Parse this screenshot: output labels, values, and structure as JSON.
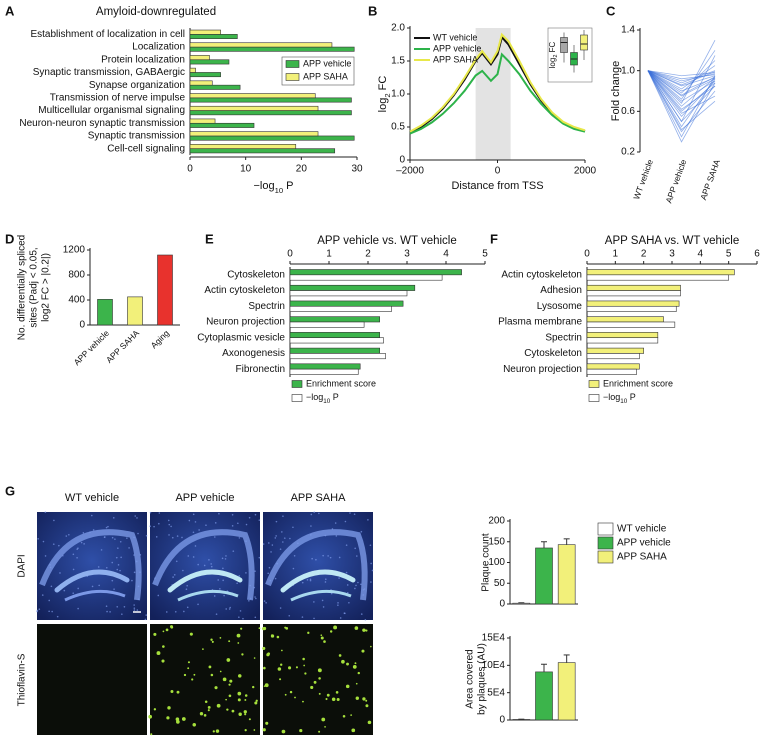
{
  "panel_labels": [
    "A",
    "B",
    "C",
    "D",
    "E",
    "F",
    "G"
  ],
  "figure_g": {
    "columns": [
      "WT vehicle",
      "APP vehicle",
      "APP SAHA"
    ],
    "rows": [
      "DAPI",
      "Thioflavin-S"
    ]
  },
  "chart_data": [
    {
      "type": "barh",
      "title": "Amyloid-downregulated",
      "categories": [
        "Establishment of localization in cell",
        "Localization",
        "Protein localization",
        "Synaptic transmission, GABAergic",
        "Synapse organization",
        "Transmission of nerve impulse",
        "Multicellular organismal signaling",
        "Neuron-neuron synaptic transmission",
        "Synaptic transmission",
        "Cell-cell signaling"
      ],
      "series": [
        {
          "name": "APP vehicle",
          "color": "#3cb44b",
          "values": [
            8.5,
            29.5,
            7,
            5.5,
            9,
            29,
            29,
            11.5,
            29.5,
            26
          ]
        },
        {
          "name": "APP SAHA",
          "color": "#f2f07a",
          "values": [
            5.5,
            25.5,
            3.5,
            1,
            4,
            22.5,
            23,
            4.5,
            23,
            19
          ]
        }
      ],
      "xlim": [
        0,
        30
      ],
      "xticks": [
        0,
        10,
        20,
        30
      ],
      "x_label": [
        "−log",
        "10",
        " P"
      ],
      "legend": "center right"
    },
    {
      "type": "line",
      "x_label": "Distance from TSS",
      "y_label": [
        "log",
        "2",
        " FC"
      ],
      "x": [
        -2000,
        -1750,
        -1500,
        -1250,
        -1000,
        -750,
        -500,
        -350,
        -150,
        0,
        100,
        250,
        500,
        750,
        1000,
        1250,
        1500,
        1750,
        2000
      ],
      "series": [
        {
          "name": "WT vehicle",
          "color": "#111111",
          "values": [
            0.42,
            0.5,
            0.62,
            0.78,
            0.98,
            1.22,
            1.5,
            1.62,
            1.45,
            1.6,
            1.86,
            1.75,
            1.45,
            1.15,
            0.9,
            0.7,
            0.56,
            0.48,
            0.44
          ]
        },
        {
          "name": "APP vehicle",
          "color": "#2db34a",
          "values": [
            0.4,
            0.47,
            0.57,
            0.7,
            0.86,
            1.05,
            1.28,
            1.35,
            1.2,
            1.3,
            1.6,
            1.5,
            1.3,
            1.05,
            0.85,
            0.68,
            0.55,
            0.47,
            0.43
          ]
        },
        {
          "name": "APP SAHA",
          "color": "#e8e84a",
          "values": [
            0.43,
            0.52,
            0.64,
            0.8,
            1.0,
            1.25,
            1.52,
            1.65,
            1.48,
            1.65,
            1.9,
            1.8,
            1.5,
            1.18,
            0.92,
            0.72,
            0.58,
            0.5,
            0.45
          ]
        }
      ],
      "shade": [
        -500,
        300
      ],
      "xlim": [
        -2000,
        2000
      ],
      "xticks": [
        {
          "value": -2000,
          "label": "–2000"
        },
        0,
        2000
      ],
      "ylim": [
        0,
        2
      ],
      "yticks": [
        0,
        0.5,
        {
          "value": 1,
          "label": "1.0"
        },
        1.5,
        {
          "value": 2,
          "label": "2.0"
        }
      ],
      "legend": "upper left",
      "inset": {
        "y_label": [
          "log",
          "2",
          " FC"
        ],
        "ylim": [
          0,
          1
        ],
        "boxes": [
          {
            "color": "#a8a8a8",
            "whiskers": [
              0.35,
              0.95
            ],
            "box": [
              0.55,
              0.85
            ],
            "median": 0.75
          },
          {
            "color": "#2db34a",
            "whiskers": [
              0.15,
              0.7
            ],
            "box": [
              0.3,
              0.55
            ],
            "median": 0.42
          },
          {
            "color": "#f2f07a",
            "whiskers": [
              0.4,
              1.0
            ],
            "box": [
              0.6,
              0.9
            ],
            "median": 0.72
          }
        ]
      }
    },
    {
      "type": "line",
      "y_label": "Fold change",
      "color": "#3a6fd8",
      "categories": [
        "WT vehicle",
        "APP vehicle",
        "APP SAHA"
      ],
      "series": [
        {
          "values": [
            1,
            0.95,
            0.98
          ]
        },
        {
          "values": [
            1,
            0.9,
            0.97
          ]
        },
        {
          "values": [
            1,
            0.85,
            0.95
          ]
        },
        {
          "values": [
            1,
            0.8,
            0.93
          ]
        },
        {
          "values": [
            1,
            0.75,
            0.92
          ]
        },
        {
          "values": [
            1,
            0.7,
            0.9
          ]
        },
        {
          "values": [
            1,
            0.65,
            0.93
          ]
        },
        {
          "values": [
            1,
            0.6,
            0.88
          ]
        },
        {
          "values": [
            1,
            0.55,
            0.9
          ]
        },
        {
          "values": [
            1,
            0.5,
            0.85
          ]
        },
        {
          "values": [
            1,
            0.45,
            0.92
          ]
        },
        {
          "values": [
            1,
            0.4,
            0.8
          ]
        },
        {
          "values": [
            1,
            0.35,
            0.95
          ]
        },
        {
          "values": [
            1,
            0.3,
            0.88
          ]
        },
        {
          "values": [
            1,
            0.82,
            1.05
          ]
        },
        {
          "values": [
            1,
            0.78,
            1.1
          ]
        },
        {
          "values": [
            1,
            0.72,
            1.2
          ]
        },
        {
          "values": [
            1,
            0.68,
            1.3
          ]
        },
        {
          "values": [
            1,
            0.88,
            1.0
          ]
        },
        {
          "values": [
            1,
            0.92,
            0.96
          ]
        },
        {
          "values": [
            1,
            0.62,
            0.85
          ]
        },
        {
          "values": [
            1,
            0.58,
            0.75
          ]
        },
        {
          "values": [
            1,
            0.5,
            1.15
          ]
        },
        {
          "values": [
            1,
            0.42,
            0.7
          ]
        },
        {
          "values": [
            1,
            0.86,
            0.99
          ]
        },
        {
          "values": [
            1,
            0.76,
            0.94
          ]
        }
      ],
      "ylim": [
        0.2,
        1.4
      ],
      "yticks": [
        0.2,
        0.6,
        {
          "value": 1,
          "label": "1.0"
        },
        1.4
      ]
    },
    {
      "type": "bar",
      "y_label_lines": [
        "No. differentially spliced",
        "sites (Padj < 0.05,",
        "log2 FC > |0.2|)"
      ],
      "categories": [
        "APP vehicle",
        "APP SAHA",
        "Aging"
      ],
      "values": [
        410,
        450,
        1120
      ],
      "colors": [
        "#3cb44b",
        "#f2f07a",
        "#e8322d"
      ],
      "ylim": [
        0,
        1200
      ],
      "yticks": [
        0,
        400,
        800,
        1200
      ]
    },
    {
      "type": "barh",
      "title": "APP vehicle vs. WT vehicle",
      "categories": [
        "Cytoskeleton",
        "Actin cytoskeleton",
        "Spectrin",
        "Neuron projection",
        "Cytoplasmic vesicle",
        "Axonogenesis",
        "Fibronectin"
      ],
      "series": [
        {
          "name": "Enrichment score",
          "color": "#3cb44b",
          "values": [
            4.4,
            3.2,
            2.9,
            2.3,
            2.3,
            2.3,
            1.8
          ]
        },
        {
          "name": [
            "−log",
            "10",
            " P"
          ],
          "color": "#ffffff",
          "values": [
            3.9,
            3.0,
            2.6,
            1.9,
            2.4,
            2.45,
            1.75
          ]
        }
      ],
      "xlim": [
        0,
        5
      ],
      "xticks": [
        0,
        1,
        2,
        3,
        4,
        5
      ],
      "legend": "lower left"
    },
    {
      "type": "barh",
      "title": "APP SAHA vs. WT vehicle",
      "categories": [
        "Actin cytoskeleton",
        "Adhesion",
        "Lysosome",
        "Plasma membrane",
        "Spectrin",
        "Cytoskeleton",
        "Neuron projection"
      ],
      "series": [
        {
          "name": "Enrichment score",
          "color": "#f2f07a",
          "values": [
            5.2,
            3.3,
            3.25,
            2.7,
            2.5,
            2.0,
            1.85
          ]
        },
        {
          "name": [
            "−log",
            "10",
            " P"
          ],
          "color": "#ffffff",
          "values": [
            5.0,
            3.3,
            3.15,
            3.1,
            2.5,
            1.85,
            1.75
          ]
        }
      ],
      "xlim": [
        0,
        6
      ],
      "xticks": [
        0,
        1,
        2,
        3,
        4,
        5,
        6
      ],
      "legend": "lower left"
    },
    {
      "type": "bar",
      "y_label_lines": [
        "Plaque count"
      ],
      "series": [
        {
          "name": "WT vehicle",
          "color": "#ffffff",
          "values": [
            2
          ],
          "errors": [
            1
          ]
        },
        {
          "name": "APP vehicle",
          "color": "#3cb44b",
          "values": [
            135
          ],
          "errors": [
            15
          ]
        },
        {
          "name": "APP SAHA",
          "color": "#f2f07a",
          "values": [
            143
          ],
          "errors": [
            14
          ]
        }
      ],
      "ylim": [
        0,
        200
      ],
      "yticks": [
        0,
        50,
        100,
        150,
        200
      ],
      "legend": "upper right"
    },
    {
      "type": "bar",
      "y_label_lines": [
        "Area covered",
        "by plaques (AU)"
      ],
      "series": [
        {
          "color": "#ffffff",
          "values": [
            1000
          ],
          "errors": [
            500
          ]
        },
        {
          "color": "#3cb44b",
          "values": [
            88000
          ],
          "errors": [
            14000
          ]
        },
        {
          "color": "#f2f07a",
          "values": [
            105000
          ],
          "errors": [
            14000
          ]
        }
      ],
      "ylim": [
        0,
        150000
      ],
      "yticks": [
        0,
        {
          "value": 50000,
          "label": "5E4"
        },
        {
          "value": 100000,
          "label": "10E4"
        },
        {
          "value": 150000,
          "label": "15E4"
        }
      ]
    }
  ]
}
